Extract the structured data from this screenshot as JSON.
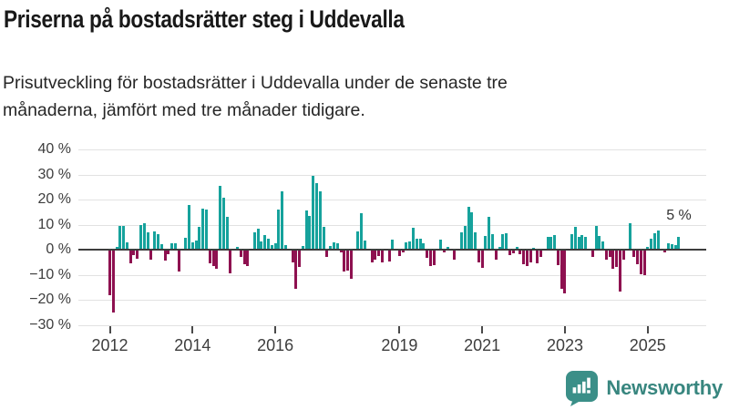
{
  "header": {
    "title": "Priserna på bostadsrätter steg i Uddevalla",
    "subtitle": {
      "line1": "Prisutveckling för bostadsrätter i Uddevalla under de senaste tre",
      "line2": "månaderna, jämfört med tre månader tidigare.",
      "full": "Prisutveckling för bostadsrätter i Uddevalla under de senaste tre månaderna, jämfört med tre månader tidigare."
    }
  },
  "colors": {
    "positive_bar": "#16a29c",
    "negative_bar": "#8e1150",
    "gridline": "#e2e2e2",
    "zero_line": "#3d3d3d",
    "axis_text": "#3d3d3d",
    "brand_teal": "#3b8f88"
  },
  "chart_data": {
    "type": "bar",
    "title": "Priserna på bostadsrätter steg i Uddevalla",
    "xlabel": "",
    "ylabel": "",
    "unit": "%",
    "grid": true,
    "legend": "none",
    "frequency": "monthly",
    "start_month": "2012-01",
    "ylim": [
      -30,
      40
    ],
    "yticks": [
      {
        "value": 40,
        "label": "40 %"
      },
      {
        "value": 30,
        "label": "30 %"
      },
      {
        "value": 20,
        "label": "20 %"
      },
      {
        "value": 10,
        "label": "10 %"
      },
      {
        "value": 0,
        "label": "0 %"
      },
      {
        "value": -10,
        "label": "−10 %"
      },
      {
        "value": -20,
        "label": "−20 %"
      },
      {
        "value": -30,
        "label": "−30 %"
      }
    ],
    "xticks": [
      {
        "year": 2012,
        "label": "2012"
      },
      {
        "year": 2014,
        "label": "2014"
      },
      {
        "year": 2016,
        "label": "2016"
      },
      {
        "year": 2019,
        "label": "2019"
      },
      {
        "year": 2021,
        "label": "2021"
      },
      {
        "year": 2023,
        "label": "2023"
      },
      {
        "year": 2025,
        "label": "2025"
      }
    ],
    "last_value_label": "5 %",
    "values": [
      -18.0,
      -25.0,
      1.0,
      9.4,
      9.4,
      2.9,
      -5.4,
      -2.3,
      -3.5,
      10.0,
      10.5,
      6.9,
      -3.8,
      7.3,
      6.3,
      2.2,
      -4.4,
      -1.7,
      2.6,
      2.6,
      -8.7,
      0,
      4.9,
      18.0,
      3.1,
      3.5,
      9.2,
      16.4,
      16.1,
      -5.5,
      -6.7,
      -7.6,
      25.6,
      20.9,
      13.1,
      -9.6,
      0,
      1.0,
      -2.8,
      -5.9,
      -6.7,
      0,
      7.1,
      8.3,
      3.3,
      6.0,
      4.5,
      1.8,
      2.7,
      16.0,
      23.3,
      1.8,
      0,
      -4.9,
      -15.5,
      -7.0,
      1.6,
      15.6,
      13.5,
      29.3,
      26.7,
      23.2,
      9.1,
      -3.0,
      1.3,
      3.0,
      2.4,
      -0.9,
      -8.8,
      -8.5,
      -11.5,
      0,
      7.3,
      14.6,
      3.5,
      0,
      -4.9,
      -3.9,
      -2.7,
      -4.9,
      0,
      -4.6,
      3.9,
      0,
      -2.4,
      -0.9,
      3.0,
      3.3,
      8.9,
      4.3,
      4.3,
      2.4,
      -3.3,
      -6.5,
      -6.1,
      0,
      4.0,
      -1.2,
      1.0,
      0,
      -4.0,
      0,
      7.1,
      9.4,
      17.1,
      14.8,
      7.0,
      -4.9,
      -7.1,
      5.5,
      13.2,
      6.1,
      -4.0,
      1.0,
      6.3,
      6.7,
      -2.2,
      -1.5,
      1.2,
      -1.8,
      -5.9,
      -6.5,
      -4.9,
      0.9,
      -5.5,
      -3.0,
      0,
      5.1,
      5.1,
      5.7,
      -6.2,
      -15.5,
      -17.3,
      0,
      6.1,
      9.1,
      5.2,
      5.7,
      5.2,
      0,
      -2.8,
      9.4,
      5.5,
      3.3,
      -4.0,
      -2.8,
      -7.7,
      -7.0,
      -16.8,
      -4.0,
      0,
      10.6,
      -2.8,
      -5.7,
      -9.8,
      -10.1,
      1.2,
      4.3,
      6.7,
      7.6,
      0,
      -1.0,
      2.7,
      2.1,
      1.8,
      5.0
    ]
  },
  "footer": {
    "brand": "Newsworthy"
  }
}
